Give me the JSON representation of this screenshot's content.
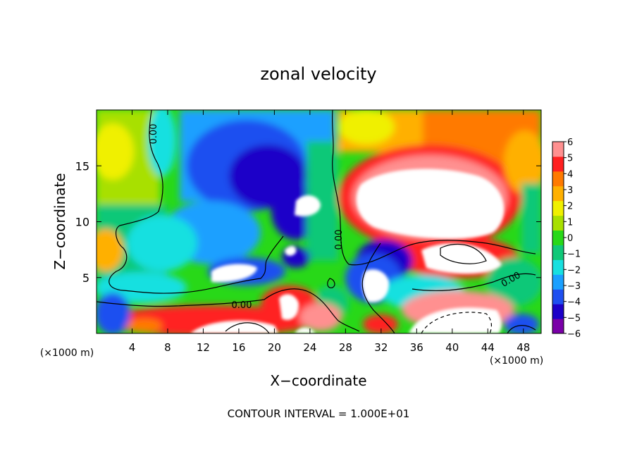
{
  "chart_data": {
    "type": "heatmap",
    "title": "zonal velocity",
    "xlabel": "X−coordinate",
    "ylabel": "Z−coordinate",
    "x_unit": "(×1000 m)",
    "y_unit": "(×1000 m)",
    "footer": "CONTOUR INTERVAL = 1.000E+01",
    "xlim": [
      0,
      50
    ],
    "ylim": [
      0,
      20
    ],
    "x_ticks": [
      4,
      8,
      12,
      16,
      20,
      24,
      28,
      32,
      36,
      40,
      44,
      48
    ],
    "y_ticks": [
      5,
      10,
      15
    ],
    "colorbar": {
      "ticks": [
        6,
        5,
        4,
        3,
        2,
        1,
        0,
        -1,
        -2,
        -3,
        -4,
        -5,
        -6
      ],
      "tick_labels": [
        "6",
        "5",
        "4",
        "3",
        "2",
        "1",
        "0",
        "−1",
        "−2",
        "−3",
        "−4",
        "−5",
        "−6"
      ],
      "range": [
        -6,
        6
      ],
      "colors": [
        "#7a00a8",
        "#1c00c8",
        "#1e4ff0",
        "#1aa0ff",
        "#18e0e0",
        "#10c878",
        "#28d818",
        "#a8e000",
        "#f0f000",
        "#ffb000",
        "#ff7a00",
        "#ff2020",
        "#ff9090"
      ]
    },
    "contour_label": "0.00",
    "saturated_regions_color": "#ffffff"
  }
}
